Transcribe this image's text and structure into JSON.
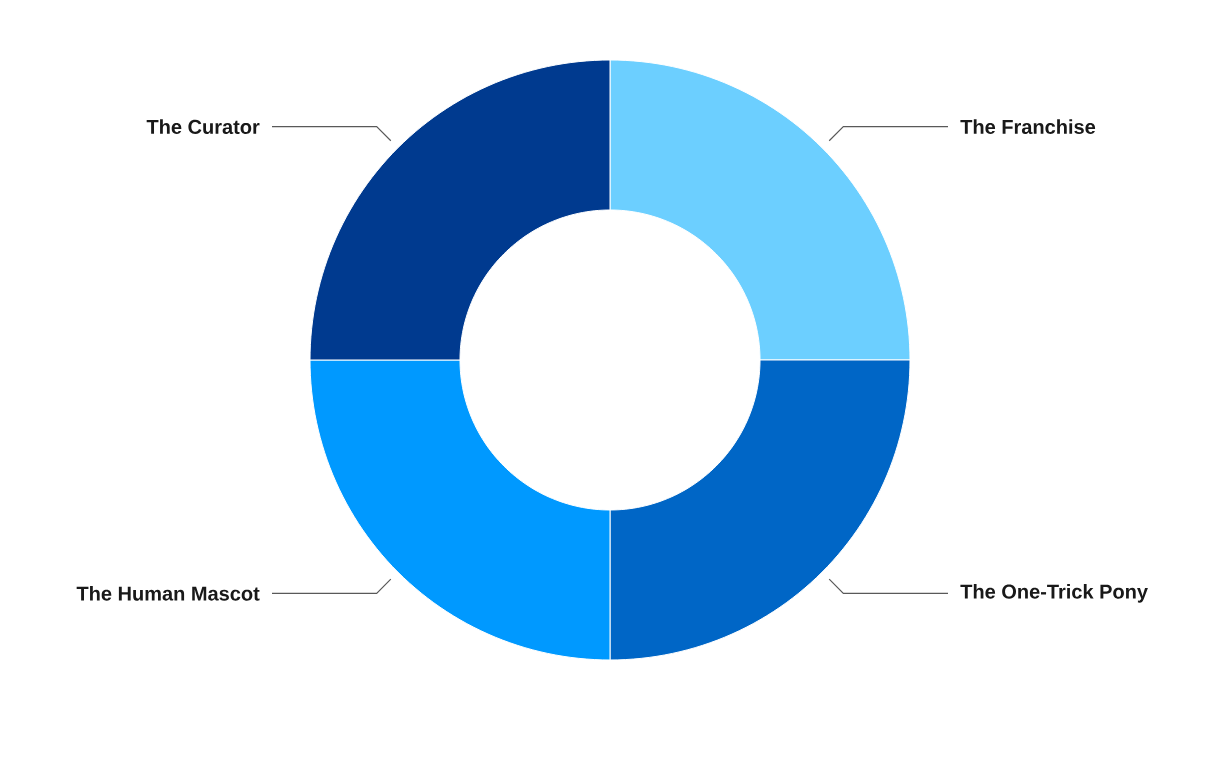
{
  "chart_data": {
    "type": "donut",
    "categories": [
      "The Franchise",
      "The One-Trick Pony",
      "The Human Mascot",
      "The Curator"
    ],
    "values": [
      25,
      25,
      25,
      25
    ],
    "colors": [
      "#6ccfff",
      "#0066c6",
      "#0099ff",
      "#003a8f"
    ]
  }
}
